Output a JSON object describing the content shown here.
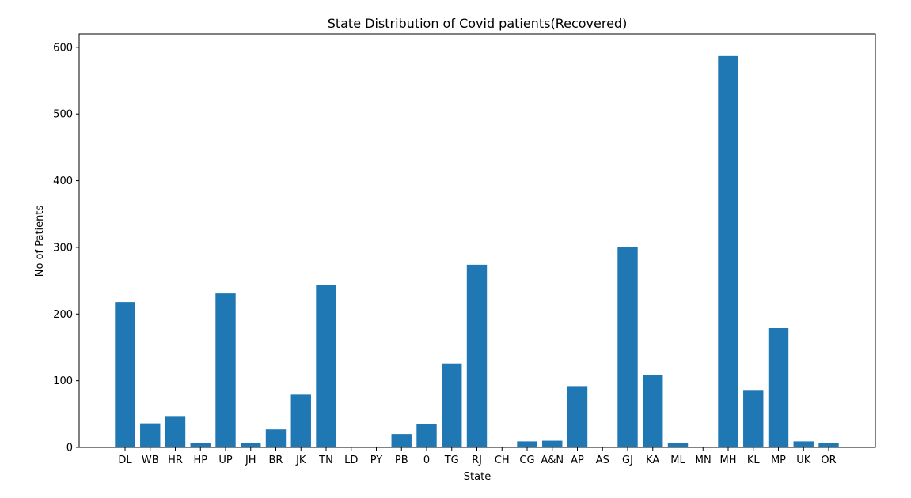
{
  "chart_data": {
    "type": "bar",
    "title": "State Distribution of Covid patients(Recovered)",
    "xlabel": "State",
    "ylabel": "No of Patients",
    "categories": [
      "DL",
      "WB",
      "HR",
      "HP",
      "UP",
      "JH",
      "BR",
      "JK",
      "TN",
      "LD",
      "PY",
      "PB",
      "0",
      "TG",
      "RJ",
      "CH",
      "CG",
      "A&N",
      "AP",
      "AS",
      "GJ",
      "KA",
      "ML",
      "MN",
      "MH",
      "KL",
      "MP",
      "UK",
      "OR"
    ],
    "values": [
      218,
      36,
      47,
      7,
      231,
      6,
      27,
      79,
      244,
      1,
      1,
      20,
      35,
      126,
      274,
      1,
      9,
      10,
      92,
      1,
      301,
      109,
      7,
      1,
      587,
      85,
      179,
      9,
      6
    ],
    "ylim": [
      0,
      620
    ],
    "yticks": [
      0,
      100,
      200,
      300,
      400,
      500,
      600
    ],
    "grid": false,
    "bar_color": "#1f77b4"
  }
}
